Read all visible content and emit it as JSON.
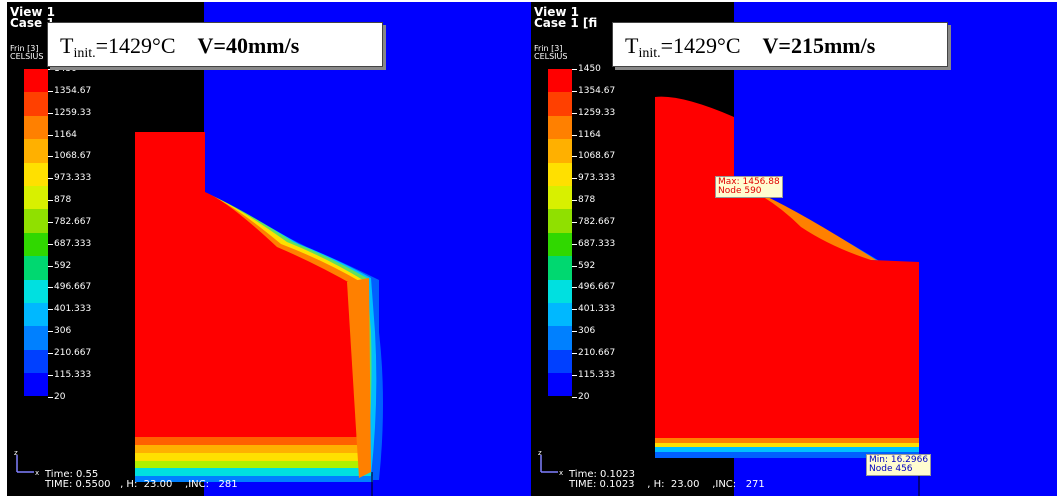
{
  "legend": {
    "colors": [
      "#ff0000",
      "#ff4000",
      "#ff8000",
      "#ffb000",
      "#ffe000",
      "#d8f000",
      "#90e000",
      "#30d800",
      "#00d870",
      "#00e0e0",
      "#00b8ff",
      "#0080ff",
      "#0040ff",
      "#0000ff"
    ],
    "ticks": [
      "1450",
      "1354.67",
      "1259.33",
      "1164",
      "1068.67",
      "973.333",
      "878",
      "782.667",
      "687.333",
      "592",
      "496.667",
      "401.333",
      "306",
      "210.667",
      "115.333",
      "20"
    ]
  },
  "left": {
    "view_title_line1": "View 1",
    "view_title_line2": "Case 1",
    "frin": "Frin [3]",
    "celsius": "CELSIUS",
    "time_short": "Time: 0.55",
    "time_long": "TIME: 0.5500   , H:  23.00    ,INC:   281",
    "caption": {
      "t_main": "T",
      "t_sub": "init.",
      "t_value": "=1429°C",
      "velocity": "V=40mm/s"
    }
  },
  "right": {
    "view_title_line1": "View 1",
    "view_title_line2": "Case 1  [fi",
    "frin": "Frin [3]",
    "celsius": "CELSIUS",
    "time_short": "Time: 0.1023",
    "time_long": "TIME: 0.1023    , H:  23.00    ,INC:   271",
    "caption": {
      "t_main": "T",
      "t_sub": "init.",
      "t_value": "=1429°C",
      "velocity": "V=215mm/s"
    },
    "max_tag": {
      "line1": "Max: 1456.88",
      "line2": "Node 590"
    },
    "min_tag": {
      "line1": "Min: 16.2966",
      "line2": "Node 456"
    }
  },
  "colors": {
    "background_blue": "#0000ff",
    "hot_red": "#ff0000",
    "mesh_black": "#000000"
  }
}
